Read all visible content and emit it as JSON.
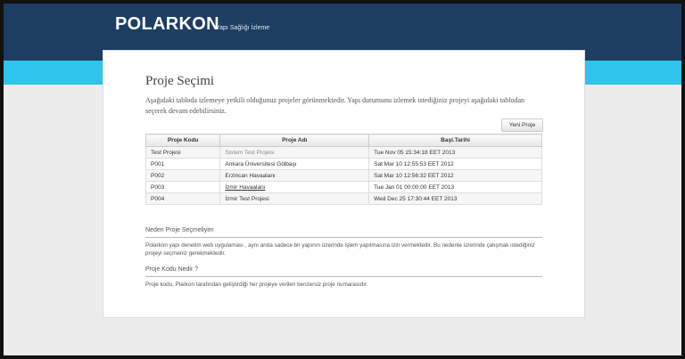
{
  "header": {
    "brand": "POLARKON",
    "subtitle": "Yapı Sağlığı İzleme"
  },
  "page": {
    "title": "Proje Seçimi",
    "intro": "Aşağıdaki tabloda izlemeye yetkili olduğunuz projeler görünmektedir. Yapı durumunu izlemek istediğiniz projeyi aşağıdaki tablodan seçerek devam edebilirsiniz.",
    "button": "Yeni Proje"
  },
  "table": {
    "headers": [
      "Proje Kodu",
      "Proje Adı",
      "Başl.Tarihi"
    ],
    "rows": [
      [
        "Test Projesi",
        "Sistem Test Projesi",
        "Tue Nov 05 15:34:18 EET 2013"
      ],
      [
        "P001",
        "Ankara Üniversitesi Gölbaşı",
        "Sat Mar 10 12:55:53 EET 2012"
      ],
      [
        "P002",
        "Erzincan Havaalanı",
        "Sat Mar 10 12:56:32 EET 2012"
      ],
      [
        "P003",
        "İzmir Havaalanı",
        "Tue Jan 01 00:00:00 EET 2013"
      ],
      [
        "P004",
        "İzmir Test Projesi",
        "Wed Dec 25 17:30:44 EET 2013"
      ]
    ]
  },
  "sections": [
    {
      "heading": "Neden Proje Seçmeliyim",
      "body": "Polarkon yapı denetim web uygulaması , aynı anda sadece bir yapının üzerinde işlem yapılmasına izin vermektedir. Bu nedenle üzerinde çalışmak istediğiniz projeyi seçmeniz gerekmektedir."
    },
    {
      "heading": "Proje Kodu Nedir ?",
      "body": "Proje kodu, Plarkon tarafından geliştirdiği her projeye verilen benzersiz proje numarasıdır."
    }
  ]
}
